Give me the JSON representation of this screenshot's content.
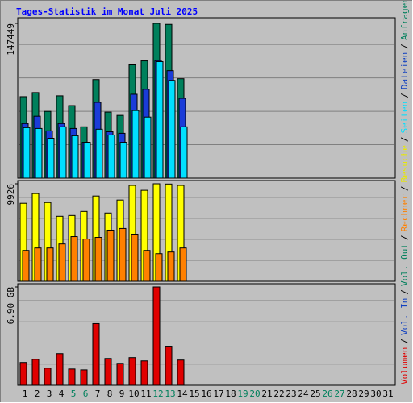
{
  "chart_data": {
    "type": "bar",
    "title": "Tages-Statistik im Monat Juli 2025",
    "categories": [
      "1",
      "2",
      "3",
      "4",
      "5",
      "6",
      "7",
      "8",
      "9",
      "10",
      "11",
      "12",
      "13",
      "14",
      "15",
      "16",
      "17",
      "18",
      "19",
      "20",
      "21",
      "22",
      "23",
      "24",
      "25",
      "26",
      "27",
      "28",
      "29",
      "30",
      "31"
    ],
    "category_colors": [
      "#000000",
      "#000000",
      "#000000",
      "#000000",
      "#00805c",
      "#00805c",
      "#000000",
      "#000000",
      "#000000",
      "#000000",
      "#000000",
      "#00805c",
      "#00805c",
      "#000000",
      "#000000",
      "#000000",
      "#000000",
      "#000000",
      "#00805c",
      "#00805c",
      "#000000",
      "#000000",
      "#000000",
      "#000000",
      "#000000",
      "#00805c",
      "#00805c",
      "#000000",
      "#000000",
      "#000000",
      "#000000"
    ],
    "separator": "/",
    "legend": [
      {
        "name": "Volumen",
        "color": "#e00000"
      },
      {
        "name": "Vol. In",
        "color": "#1040c0"
      },
      {
        "name": "Vol. Out",
        "color": "#00805c"
      },
      {
        "name": "Rechner",
        "color": "#ff8000"
      },
      {
        "name": "Besuche",
        "color": "#e8e800"
      },
      {
        "name": "Seiten",
        "color": "#00e0ff"
      },
      {
        "name": "Dateien",
        "color": "#1040c0"
      },
      {
        "name": "Anfragen",
        "color": "#00805c"
      }
    ],
    "panels": [
      {
        "ylim": [
          0,
          147449
        ],
        "yticks": [
          147449
        ],
        "grid": true,
        "series": [
          {
            "color": "#00805c",
            "values": [
              77600,
              81500,
              63600,
              78400,
              69100,
              48900,
              93900,
              62900,
              59800,
              107900,
              111700,
              147449,
              146500,
              94700,
              null,
              null,
              null,
              null,
              null,
              null,
              null,
              null,
              null,
              null,
              null,
              null,
              null,
              null,
              null,
              null,
              null
            ]
          },
          {
            "color": "#1a3cd8",
            "values": [
              52000,
              59000,
              45000,
              52000,
              47300,
              34100,
              72200,
              44200,
              42700,
              79900,
              84600,
              112000,
              102400,
              76000,
              null,
              null,
              null,
              null,
              null,
              null,
              null,
              null,
              null,
              null,
              null,
              null,
              null,
              null,
              null,
              null,
              null
            ]
          },
          {
            "color": "#00e0ff",
            "values": [
              48100,
              47300,
              38000,
              48900,
              40400,
              34100,
              46600,
              41100,
              34100,
              64400,
              58200,
              111000,
              93100,
              48900,
              null,
              null,
              null,
              null,
              null,
              null,
              null,
              null,
              null,
              null,
              null,
              null,
              null,
              null,
              null,
              null,
              null
            ]
          }
        ]
      },
      {
        "ylim": [
          0,
          9926
        ],
        "yticks": [
          9926
        ],
        "grid": true,
        "series": [
          {
            "color": "#ffff00",
            "values": [
              7940,
              8930,
              8020,
              6620,
              6700,
              7110,
              8680,
              6950,
              8270,
              9760,
              9260,
              9926,
              9900,
              9760,
              null,
              null,
              null,
              null,
              null,
              null,
              null,
              null,
              null,
              null,
              null,
              null,
              null,
              null,
              null,
              null,
              null
            ]
          },
          {
            "color": "#ff8000",
            "values": [
              3140,
              3390,
              3390,
              3800,
              4550,
              4300,
              4470,
              5210,
              5380,
              4800,
              3140,
              2810,
              2980,
              3390,
              null,
              null,
              null,
              null,
              null,
              null,
              null,
              null,
              null,
              null,
              null,
              null,
              null,
              null,
              null,
              null,
              null
            ]
          }
        ]
      },
      {
        "ylim": [
          0,
          6.9
        ],
        "yticks": [
          {
            "value": 6.9,
            "label": "6.90 GB"
          }
        ],
        "grid": true,
        "series": [
          {
            "color": "#e00000",
            "values": [
              1.6,
              1.82,
              1.2,
              2.22,
              1.14,
              1.08,
              4.33,
              1.88,
              1.54,
              1.94,
              1.71,
              6.9,
              2.74,
              1.77,
              null,
              null,
              null,
              null,
              null,
              null,
              null,
              null,
              null,
              null,
              null,
              null,
              null,
              null,
              null,
              null,
              null
            ]
          }
        ]
      }
    ]
  }
}
